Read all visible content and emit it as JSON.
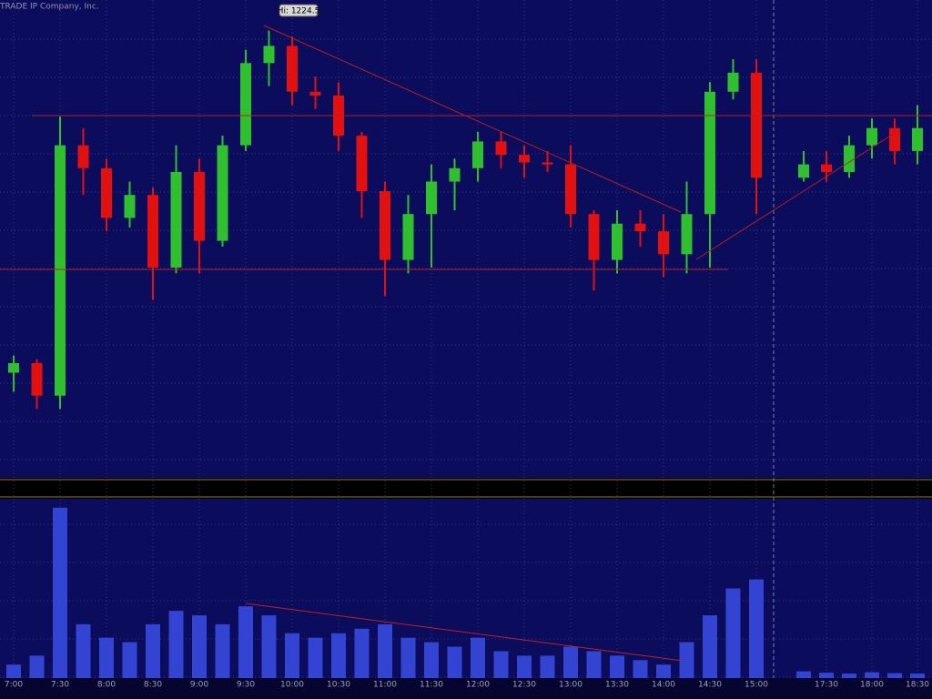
{
  "chart_data": [
    {
      "type": "candlestick",
      "copyright": "TRADE IP Company, Inc.",
      "high_label": "Hi: 1224.5",
      "up_color": "#2fbf2f",
      "down_color": "#e31010",
      "ylim": [
        1166,
        1228.5
      ],
      "open": [
        1179.75,
        1181,
        1176.75,
        1209.5,
        1206.5,
        1200,
        1203,
        1193.5,
        1206,
        1197,
        1209.5,
        1220.25,
        1222.5,
        1216.5,
        1216,
        1210.75,
        1203.5,
        1194.5,
        1200.5,
        1204.75,
        1206.5,
        1210,
        1208.25,
        1207.25,
        1207,
        1200.5,
        1194.5,
        1199.25,
        1198.25,
        1195.25,
        1200.5,
        1216.5,
        1219,
        1205.25,
        1207,
        1206,
        1209.5,
        1211.75,
        1208.75
      ],
      "high": [
        1182,
        1181.5,
        1213.25,
        1211.75,
        1207.75,
        1204.75,
        1204,
        1209.5,
        1207.75,
        1210.75,
        1222,
        1224.5,
        1223.75,
        1218.5,
        1217.75,
        1211.25,
        1204.75,
        1203,
        1207,
        1207.75,
        1211.25,
        1211.25,
        1209.5,
        1208.75,
        1209.5,
        1201,
        1201,
        1201,
        1200.5,
        1204.75,
        1217.75,
        1220.75,
        1220.75,
        1208.75,
        1208.75,
        1210.75,
        1213,
        1213,
        1214.75
      ],
      "low": [
        1177.25,
        1175,
        1175,
        1203,
        1198.25,
        1198.75,
        1189.25,
        1192.75,
        1192.75,
        1196.25,
        1208.75,
        1217.25,
        1214.75,
        1214.25,
        1208.75,
        1200,
        1189.75,
        1192.75,
        1193.5,
        1201,
        1204.75,
        1206.5,
        1205.25,
        1206,
        1198.75,
        1190.5,
        1192.75,
        1196.25,
        1192.25,
        1192.75,
        1193.5,
        1215.5,
        1200.5,
        1204.75,
        1204.75,
        1205.25,
        1207.75,
        1207,
        1207
      ],
      "close": [
        1181,
        1176.75,
        1209.5,
        1206.5,
        1200,
        1203,
        1193.5,
        1206,
        1197,
        1209.5,
        1220.25,
        1222.5,
        1216.5,
        1216,
        1210.75,
        1203.5,
        1194.5,
        1200.5,
        1204.75,
        1206.5,
        1210,
        1208.25,
        1207.25,
        1207,
        1200.5,
        1194.5,
        1199.25,
        1198.25,
        1195.25,
        1200.5,
        1216.5,
        1219,
        1205.25,
        1207,
        1206,
        1209.5,
        1211.75,
        1208.75,
        1211.75
      ]
    },
    {
      "type": "bar",
      "color": "#3b4fe6",
      "ylim": [
        0,
        40000
      ],
      "categories": [
        "7:00",
        null,
        "7:30",
        null,
        "8:00",
        null,
        "8:30",
        null,
        "9:00",
        null,
        "9:30",
        null,
        "10:00",
        null,
        "10:30",
        null,
        "11:00",
        null,
        "11:30",
        null,
        "12:00",
        null,
        "12:30",
        null,
        "13:00",
        null,
        "13:30",
        null,
        "14:00",
        null,
        "14:30",
        null,
        "15:00",
        null,
        "17:30",
        null,
        "18:00",
        null,
        "18:30"
      ],
      "values": [
        3000,
        5000,
        38000,
        12000,
        9000,
        8000,
        12000,
        15000,
        14000,
        12000,
        16000,
        14000,
        10000,
        9000,
        10000,
        11000,
        12000,
        9000,
        8000,
        7000,
        9000,
        6000,
        5000,
        5000,
        7000,
        6000,
        5000,
        4000,
        3000,
        8000,
        14000,
        20000,
        22000,
        1500,
        1200,
        1000,
        1300,
        1100,
        1000
      ]
    }
  ]
}
